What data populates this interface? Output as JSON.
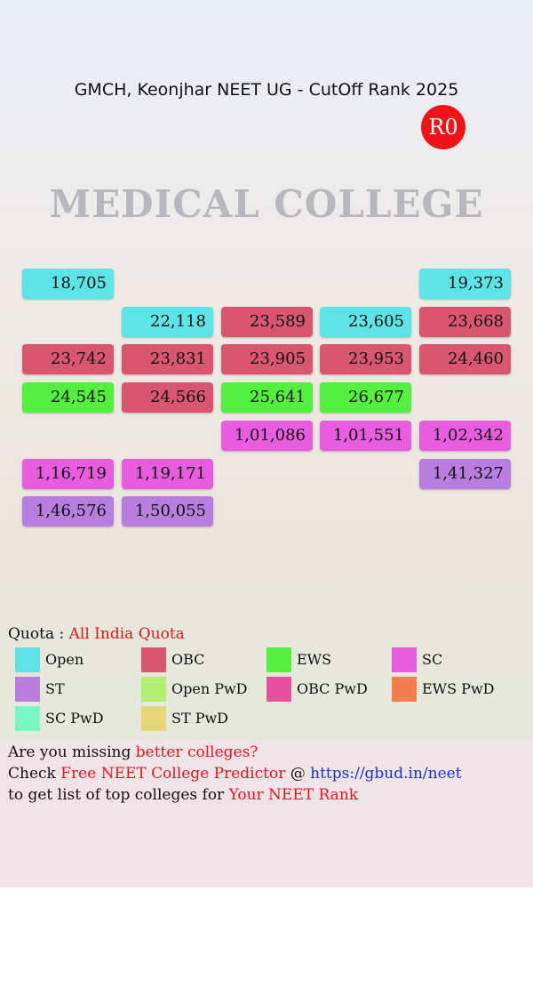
{
  "header": {
    "title": "GMCH, Keonjhar NEET UG - CutOff Rank 2025",
    "badge": "R0"
  },
  "background": {
    "sign": "MEDICAL COLLEGE"
  },
  "grid": {
    "rows": [
      [
        {
          "label": "18,705",
          "category": "Open"
        },
        null,
        null,
        null,
        {
          "label": "19,373",
          "category": "Open"
        }
      ],
      [
        null,
        {
          "label": "22,118",
          "category": "Open"
        },
        {
          "label": "23,589",
          "category": "OBC"
        },
        {
          "label": "23,605",
          "category": "Open"
        },
        {
          "label": "23,668",
          "category": "OBC"
        }
      ],
      [
        {
          "label": "23,742",
          "category": "OBC"
        },
        {
          "label": "23,831",
          "category": "OBC"
        },
        {
          "label": "23,905",
          "category": "OBC"
        },
        {
          "label": "23,953",
          "category": "OBC"
        },
        {
          "label": "24,460",
          "category": "OBC"
        }
      ],
      [
        {
          "label": "24,545",
          "category": "EWS"
        },
        {
          "label": "24,566",
          "category": "OBC"
        },
        {
          "label": "25,641",
          "category": "EWS"
        },
        {
          "label": "26,677",
          "category": "EWS"
        },
        null
      ],
      [
        null,
        null,
        {
          "label": "1,01,086",
          "category": "SC"
        },
        {
          "label": "1,01,551",
          "category": "SC"
        },
        {
          "label": "1,02,342",
          "category": "SC"
        }
      ],
      [
        {
          "label": "1,16,719",
          "category": "SC"
        },
        {
          "label": "1,19,171",
          "category": "SC"
        },
        null,
        null,
        {
          "label": "1,41,327",
          "category": "ST"
        }
      ],
      [
        {
          "label": "1,46,576",
          "category": "ST"
        },
        {
          "label": "1,50,055",
          "category": "ST"
        },
        null,
        null,
        null
      ]
    ]
  },
  "quota": {
    "label": "Quota :",
    "value": "All India Quota"
  },
  "legend": [
    {
      "name": "Open",
      "color": "#5ee3e6"
    },
    {
      "name": "OBC",
      "color": "#d9576e"
    },
    {
      "name": "EWS",
      "color": "#55f03f"
    },
    {
      "name": "SC",
      "color": "#e85de0"
    },
    {
      "name": "ST",
      "color": "#b97ddf"
    },
    {
      "name": "Open PwD",
      "color": "#b2ef74"
    },
    {
      "name": "OBC PwD",
      "color": "#e8509d"
    },
    {
      "name": "EWS PwD",
      "color": "#f47c4e"
    },
    {
      "name": "SC PwD",
      "color": "#7af5c5"
    },
    {
      "name": "ST PwD",
      "color": "#e6d67a"
    }
  ],
  "footer": {
    "lines": [
      [
        {
          "text": "Are you missing "
        },
        {
          "text": "better colleges?",
          "color": "#e8141c"
        }
      ],
      [
        {
          "text": "Check "
        },
        {
          "text": "Free NEET College Predictor",
          "color": "#e8141c"
        },
        {
          "text": " @ "
        },
        {
          "text": "https://gbud.in/neet",
          "color": "#1a2fd0"
        }
      ],
      [
        {
          "text": "to get list of top colleges for "
        },
        {
          "text": "Your NEET Rank",
          "color": "#e8141c"
        }
      ]
    ]
  }
}
